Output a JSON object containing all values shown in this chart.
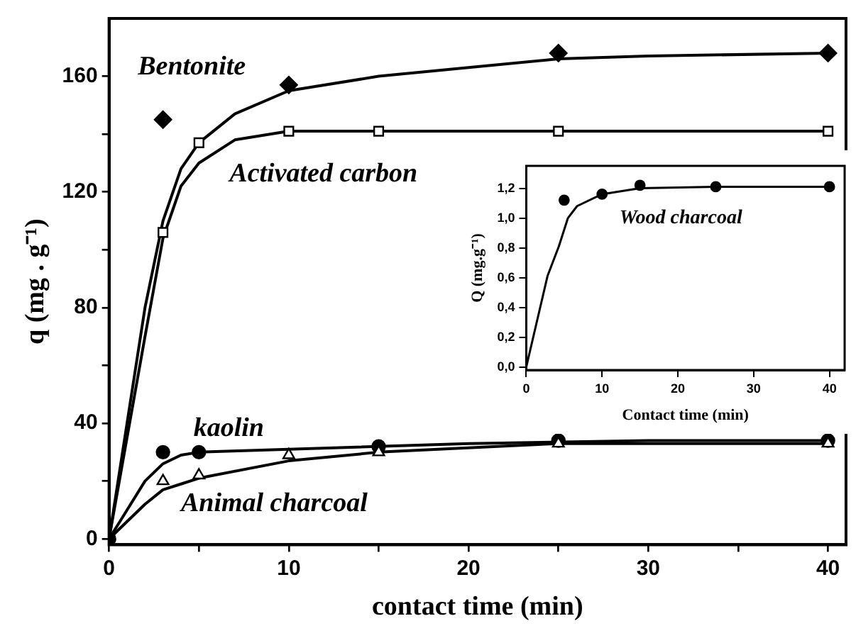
{
  "chart_data": [
    {
      "type": "scatter",
      "xlabel": "contact time (min)",
      "ylabel": "q (mg . g⁻¹)",
      "xlim": [
        0,
        41
      ],
      "ylim": [
        -2,
        180
      ],
      "xticks": [
        0,
        {
          "value": 5,
          "label": null
        },
        10,
        {
          "value": 15,
          "label": null
        },
        20,
        {
          "value": 25,
          "label": null
        },
        30,
        {
          "value": 35,
          "label": null
        },
        40
      ],
      "yticks": [
        0,
        {
          "value": 20,
          "label": null
        },
        40,
        {
          "value": 60,
          "label": null
        },
        80,
        {
          "value": 100,
          "label": null
        },
        120,
        {
          "value": 140,
          "label": null
        },
        160
      ],
      "grid": false,
      "legend": false,
      "series": [
        {
          "name": "Bentonite",
          "color": "#000000",
          "marker": "diamond",
          "x": [
            3,
            10,
            25,
            40
          ],
          "values": [
            145,
            157,
            168,
            168
          ]
        },
        {
          "name": "Activated carbon",
          "color": "#000000",
          "marker": "square",
          "x": [
            3,
            5,
            10,
            15,
            25,
            40
          ],
          "values": [
            106,
            137,
            141,
            141,
            141,
            141
          ]
        },
        {
          "name": "kaolin",
          "color": "#000000",
          "marker": "circle",
          "x": [
            0,
            3,
            5,
            15,
            25,
            40
          ],
          "values": [
            0,
            30,
            30,
            32,
            34,
            34
          ]
        },
        {
          "name": "Animal charcoal",
          "color": "#000000",
          "marker": "triangle",
          "x": [
            3,
            5,
            10,
            15,
            25,
            40
          ],
          "values": [
            20,
            22,
            29,
            30,
            33,
            33
          ]
        },
        {
          "type": "line",
          "color": "#000000",
          "marker": "none",
          "x": [
            0,
            1,
            2,
            3,
            4,
            5,
            7,
            10,
            15,
            20,
            25,
            30,
            40
          ],
          "values": [
            0,
            40,
            80,
            110,
            128,
            137,
            147,
            155,
            160,
            163,
            166,
            167,
            168
          ]
        },
        {
          "type": "line",
          "color": "#000000",
          "marker": "none",
          "x": [
            0,
            1,
            2,
            3,
            4,
            5,
            7,
            10,
            15,
            25,
            40
          ],
          "values": [
            0,
            35,
            70,
            104,
            122,
            130,
            138,
            141,
            141,
            141,
            141
          ]
        },
        {
          "type": "line",
          "color": "#000000",
          "marker": "none",
          "x": [
            0,
            1,
            2,
            3,
            4,
            5,
            10,
            20,
            30,
            40
          ],
          "values": [
            0,
            10,
            20,
            26,
            29,
            30,
            31,
            33,
            34,
            34
          ]
        },
        {
          "type": "line",
          "color": "#000000",
          "marker": "none",
          "x": [
            0,
            1,
            2,
            3,
            4,
            5,
            10,
            15,
            25,
            40
          ],
          "values": [
            0,
            6,
            12,
            17,
            19,
            21,
            27,
            30,
            33,
            33
          ]
        }
      ]
    },
    {
      "type": "scatter",
      "xlabel": "Contact time (min)",
      "ylabel": "Q (mg.g⁻¹)",
      "xlim": [
        0,
        42
      ],
      "ylim": [
        -0.02,
        1.35
      ],
      "xticks": [
        0,
        10,
        20,
        30,
        40
      ],
      "yticks": [
        {
          "value": 0,
          "label": "0,0"
        },
        {
          "value": 0.2,
          "label": "0,2"
        },
        {
          "value": 0.4,
          "label": "0,4"
        },
        {
          "value": 0.6,
          "label": "0,6"
        },
        {
          "value": 0.8,
          "label": "0,8"
        },
        {
          "value": 1,
          "label": "1,0"
        },
        {
          "value": 1.2,
          "label": "1,2"
        }
      ],
      "grid": false,
      "legend": false,
      "series": [
        {
          "name": "Wood charcoal",
          "color": "#000000",
          "marker": "circle",
          "x": [
            5,
            10,
            15,
            25,
            40
          ],
          "values": [
            1.12,
            1.16,
            1.22,
            1.21,
            1.21
          ]
        },
        {
          "type": "line",
          "color": "#000000",
          "marker": "none",
          "x": [
            0,
            2.8,
            4.3,
            5.5,
            6.7,
            10,
            15,
            25,
            40
          ],
          "values": [
            0,
            0.61,
            0.81,
            1.0,
            1.08,
            1.16,
            1.2,
            1.21,
            1.21
          ]
        }
      ]
    }
  ]
}
